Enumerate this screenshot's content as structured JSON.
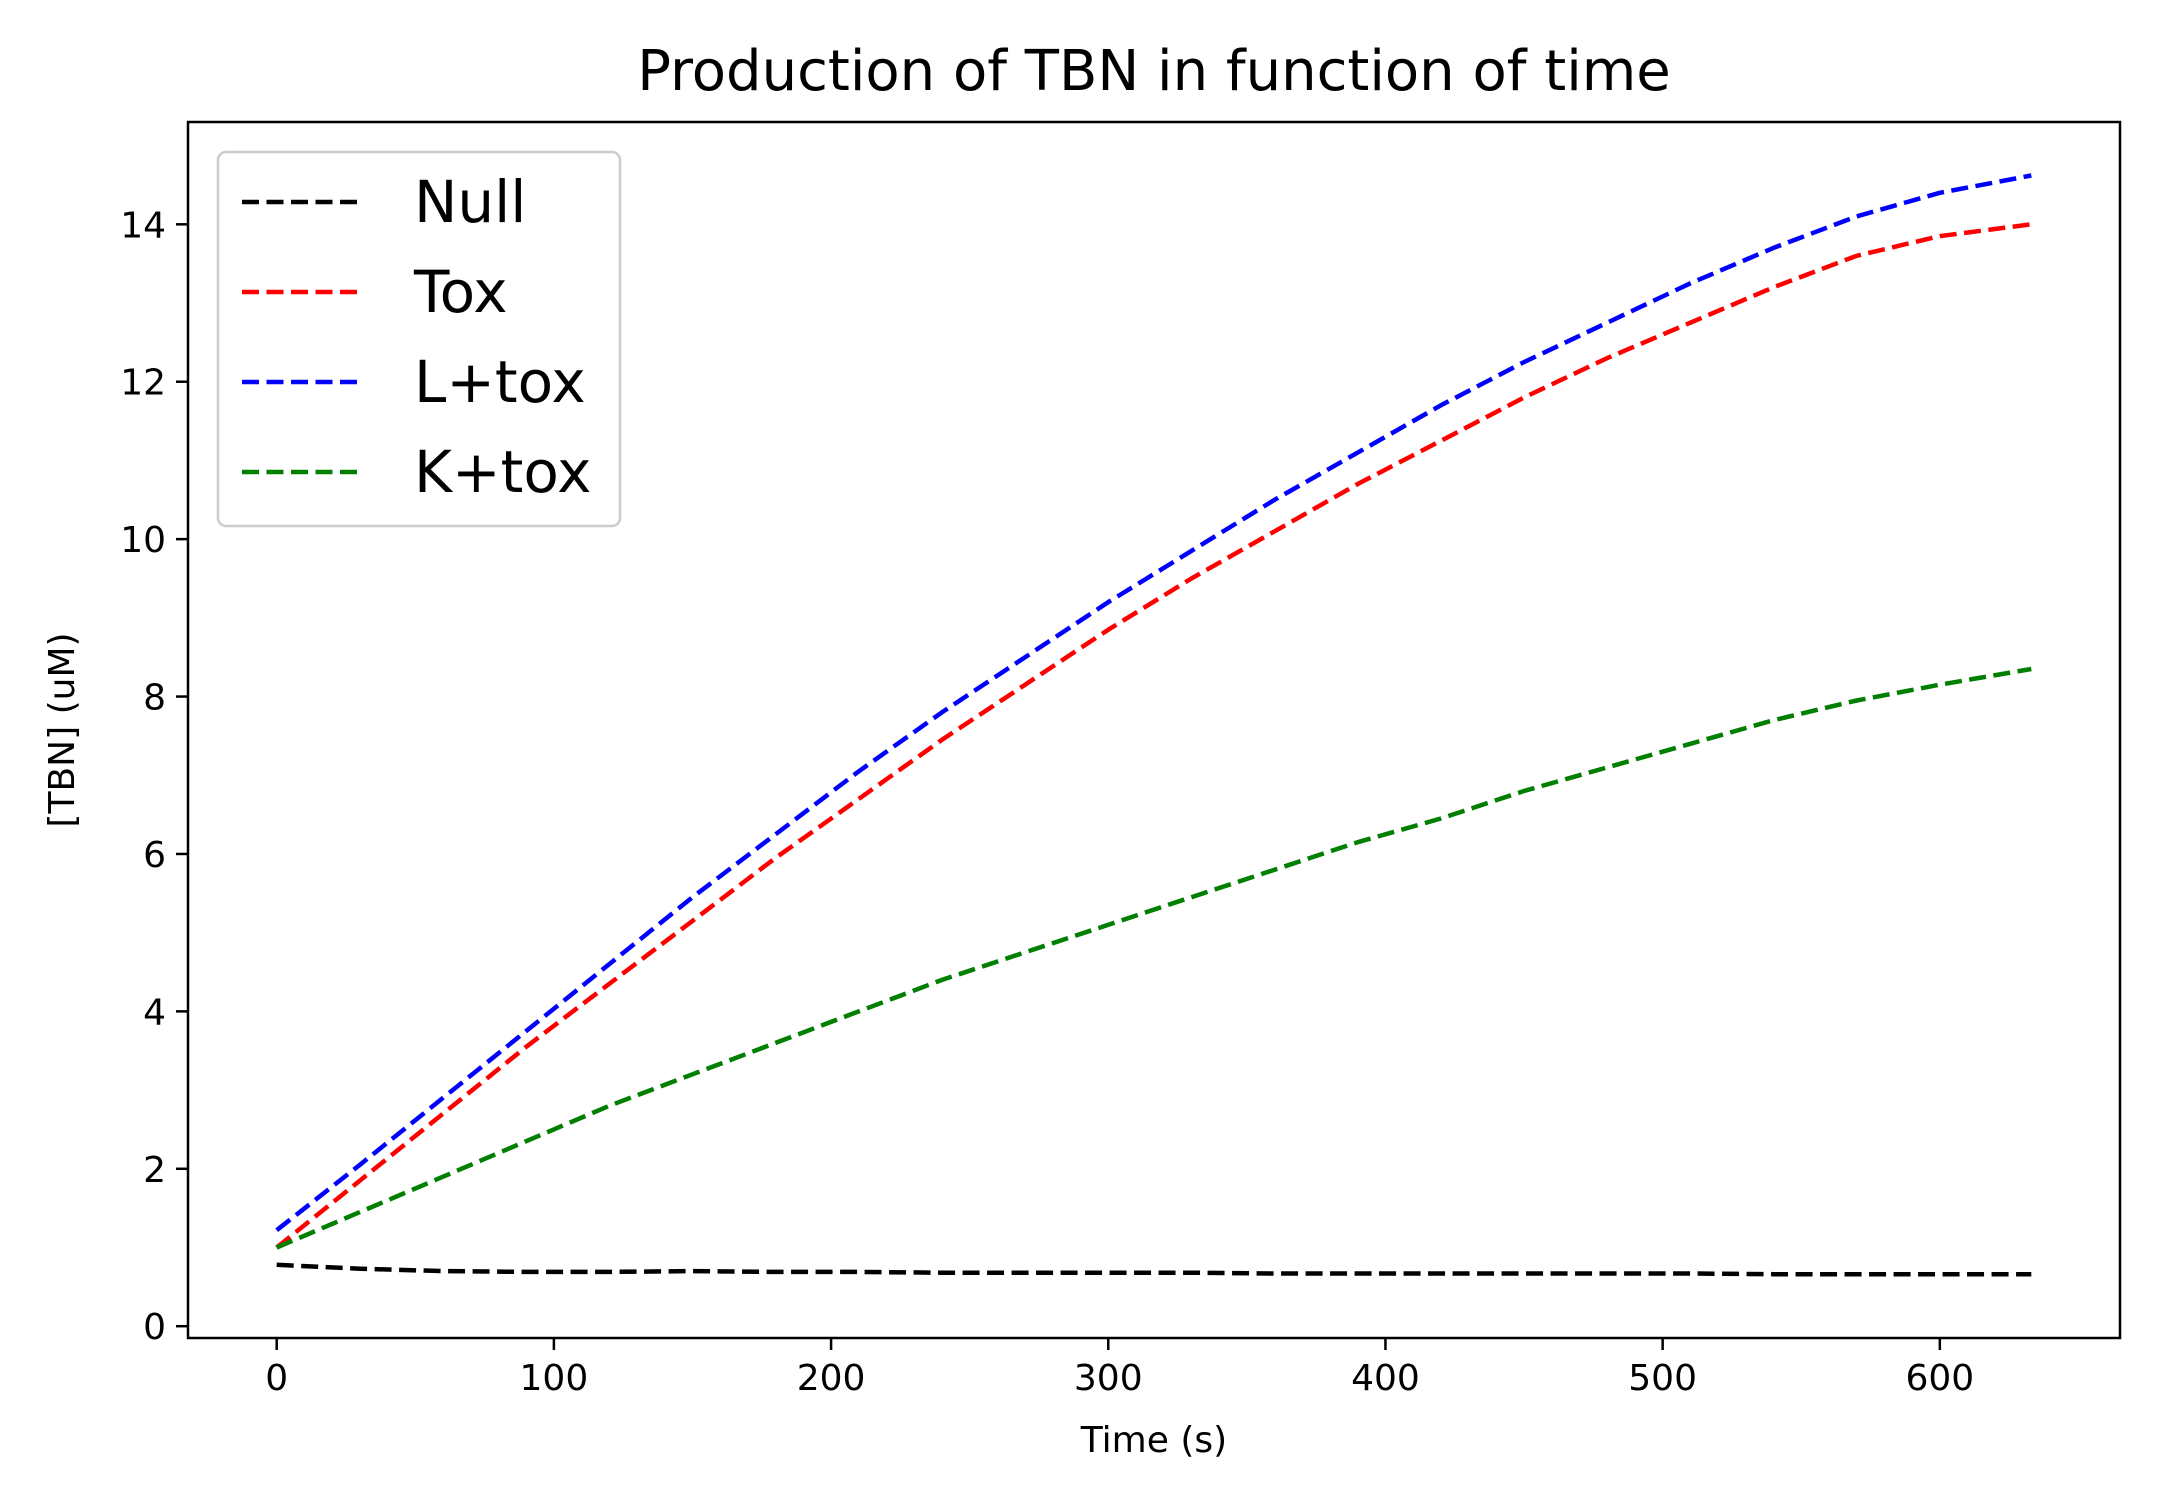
{
  "chart_data": {
    "type": "line",
    "title": "Production of TBN in function of time",
    "xlabel": "Time (s)",
    "ylabel": "[TBN] (uM)",
    "xlim": [
      -32,
      665
    ],
    "ylim": [
      -0.15,
      15.3
    ],
    "xticks": [
      0,
      100,
      200,
      300,
      400,
      500,
      600
    ],
    "yticks": [
      0,
      2,
      4,
      6,
      8,
      10,
      12,
      14
    ],
    "grid": false,
    "legend_position": "upper-left",
    "line_style": "dashed",
    "x": [
      0,
      30,
      60,
      90,
      120,
      150,
      180,
      210,
      240,
      270,
      300,
      330,
      360,
      390,
      420,
      450,
      480,
      510,
      540,
      570,
      600,
      633
    ],
    "series": [
      {
        "name": "Null",
        "color": "#000000",
        "values": [
          0.78,
          0.73,
          0.7,
          0.69,
          0.69,
          0.7,
          0.69,
          0.69,
          0.68,
          0.68,
          0.68,
          0.68,
          0.67,
          0.67,
          0.67,
          0.67,
          0.67,
          0.67,
          0.66,
          0.66,
          0.66,
          0.66
        ]
      },
      {
        "name": "Tox",
        "color": "#ff0000",
        "values": [
          1.0,
          1.85,
          2.7,
          3.55,
          4.35,
          5.15,
          5.95,
          6.7,
          7.45,
          8.15,
          8.85,
          9.5,
          10.1,
          10.7,
          11.25,
          11.8,
          12.3,
          12.75,
          13.2,
          13.6,
          13.85,
          14.0
        ]
      },
      {
        "name": "L+tox",
        "color": "#0000ff",
        "values": [
          1.22,
          2.05,
          2.9,
          3.75,
          4.6,
          5.45,
          6.25,
          7.05,
          7.8,
          8.5,
          9.2,
          9.85,
          10.5,
          11.1,
          11.7,
          12.25,
          12.75,
          13.25,
          13.7,
          14.1,
          14.4,
          14.62
        ]
      },
      {
        "name": "K+tox",
        "color": "#007f00",
        "values": [
          1.0,
          1.45,
          1.9,
          2.35,
          2.8,
          3.2,
          3.6,
          4.0,
          4.4,
          4.75,
          5.1,
          5.45,
          5.8,
          6.15,
          6.45,
          6.8,
          7.1,
          7.4,
          7.7,
          7.95,
          8.15,
          8.35
        ]
      }
    ]
  }
}
